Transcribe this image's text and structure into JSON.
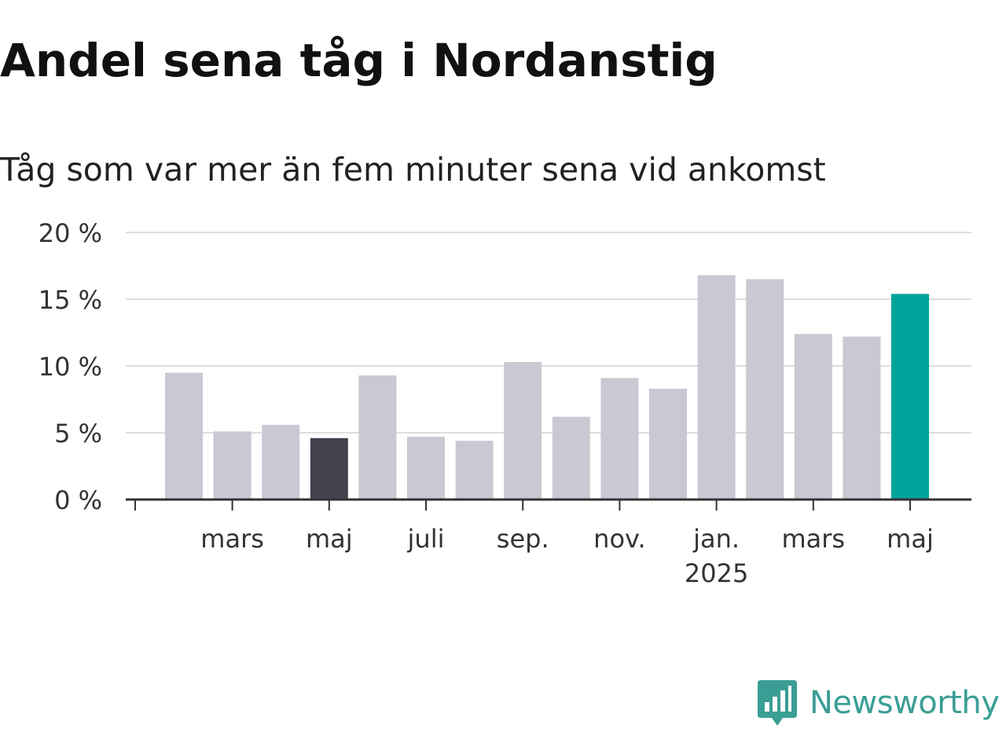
{
  "header": {
    "title": "Andel sena tåg i Nordanstig",
    "subtitle": "Tåg som var mer än fem minuter sena vid ankomst"
  },
  "chart_data": {
    "type": "bar",
    "title": "Andel sena tåg i Nordanstig",
    "subtitle": "Tåg som var mer än fem minuter sena vid ankomst",
    "xlabel": "",
    "ylabel": "",
    "unit": "%",
    "ylim": [
      0,
      20
    ],
    "grid": true,
    "legend": "none",
    "categories": [
      "2024-02",
      "2024-03",
      "2024-04",
      "2024-05",
      "2024-06",
      "2024-07",
      "2024-08",
      "2024-09",
      "2024-10",
      "2024-11",
      "2024-12",
      "2025-01",
      "2025-02",
      "2025-03",
      "2025-04",
      "2025-05"
    ],
    "values": [
      9.5,
      5.1,
      5.6,
      4.6,
      9.3,
      4.7,
      4.4,
      10.3,
      6.2,
      9.1,
      8.3,
      16.8,
      16.5,
      12.4,
      12.2,
      15.4
    ],
    "highlights": {
      "2024-05": "#44424f",
      "2025-05": "#00a39a"
    },
    "bar_color": "#c9c8d3",
    "yticks": [
      {
        "value": 0,
        "label": "0 %"
      },
      {
        "value": 5,
        "label": "5 %"
      },
      {
        "value": 10,
        "label": "10 %"
      },
      {
        "value": 15,
        "label": "15 %"
      },
      {
        "value": 20,
        "label": "20 %"
      }
    ],
    "xticks": [
      {
        "category": "2024-03",
        "label": "mars"
      },
      {
        "category": "2024-05",
        "label": "maj"
      },
      {
        "category": "2024-07",
        "label": "juli"
      },
      {
        "category": "2024-09",
        "label": "sep."
      },
      {
        "category": "2024-11",
        "label": "nov."
      },
      {
        "category": "2025-01",
        "label": "jan.",
        "sublabel": "2025"
      },
      {
        "category": "2025-03",
        "label": "mars"
      },
      {
        "category": "2025-05",
        "label": "maj"
      }
    ]
  },
  "brand": {
    "name": "Newsworthy",
    "icon": "newsworthy-logo-icon",
    "color": "#3a9e95"
  }
}
